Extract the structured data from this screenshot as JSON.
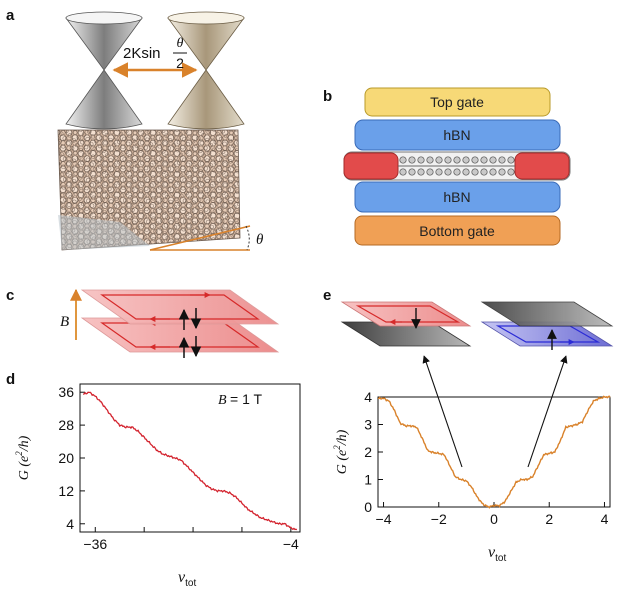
{
  "panel_labels": {
    "a": "a",
    "b": "b",
    "c": "c",
    "d": "d",
    "e": "e"
  },
  "panel_a": {
    "sep_prefix": "2Ksin",
    "frac_num": "θ",
    "frac_den": "2",
    "angle_label": "θ",
    "colors": {
      "cone_left": "#8a8a8a",
      "cone_right": "#b5a588",
      "arrow": "#d9822b",
      "lattice": "#e7cdb8"
    }
  },
  "panel_b": {
    "top_gate": "Top gate",
    "hbn_top": "hBN",
    "hbn_bottom": "hBN",
    "bottom_gate": "Bottom gate",
    "colors": {
      "top_gate": "#f7d977",
      "hbn": "#6aa0ea",
      "contact": "#e24b4b",
      "bottom_gate": "#f0a055"
    }
  },
  "panel_c": {
    "b_label": "B",
    "colors": {
      "layer": "#f3a7a7",
      "edge": "#d62a2a",
      "b_arrow": "#e0973f"
    }
  },
  "panel_d": {
    "field_var": "B",
    "field_value": "= 1 T",
    "ylabel_main": "G (e",
    "ylabel_sup": "2",
    "ylabel_tail": "/h)",
    "xlabel_main": "ν",
    "xlabel_sub": "tot",
    "line_color": "#d3232e"
  },
  "panel_e": {
    "ylabel_main": "G (e",
    "ylabel_sup": "2",
    "ylabel_tail": "/h)",
    "xlabel_main": "ν",
    "xlabel_sub": "tot",
    "line_color": "#d9822b",
    "inset_colors": {
      "red": "#f3a7a7",
      "red_edge": "#d62a2a",
      "blue": "#7b7bd6",
      "blue_edge": "#2b2bd6",
      "dark": "#555555"
    }
  },
  "chart_data": [
    {
      "id": "d",
      "type": "line",
      "title": "",
      "xlabel": "ν_tot",
      "ylabel": "G (e²/h)",
      "annotation": "B = 1 T",
      "xlim": [
        -38.5,
        -2.5
      ],
      "ylim": [
        2,
        38
      ],
      "xticks": [
        -36,
        -28,
        -20,
        -12,
        -4
      ],
      "xtick_labels": [
        "-36",
        "",
        "",
        "",
        "-4"
      ],
      "yticks": [
        4,
        12,
        20,
        28,
        36
      ],
      "grid": false,
      "x": [
        -38,
        -37,
        -36,
        -35,
        -34,
        -33,
        -32,
        -31,
        -30,
        -29,
        -28,
        -27,
        -26,
        -25,
        -24,
        -23,
        -22,
        -21,
        -20,
        -19,
        -18,
        -17,
        -16,
        -15,
        -14,
        -13,
        -12,
        -11,
        -10,
        -9,
        -8,
        -7,
        -6,
        -5,
        -4,
        -3
      ],
      "y": [
        35.5,
        36,
        35,
        33.5,
        31.5,
        29.5,
        28,
        27.5,
        27.5,
        26.5,
        25,
        23.5,
        22,
        21,
        20.5,
        20,
        19.5,
        18,
        16.5,
        15,
        13.5,
        12.5,
        12,
        12,
        11.5,
        10.5,
        9,
        7.5,
        6.5,
        5.5,
        5,
        4.5,
        4,
        4,
        3,
        2.5
      ]
    },
    {
      "id": "e",
      "type": "line",
      "title": "",
      "xlabel": "ν_tot",
      "ylabel": "G (e²/h)",
      "xlim": [
        -4.2,
        4.2
      ],
      "ylim": [
        0,
        4
      ],
      "xticks": [
        -4,
        -2,
        0,
        2,
        4
      ],
      "yticks": [
        0,
        1,
        2,
        3,
        4
      ],
      "grid": false,
      "x": [
        -4.2,
        -4,
        -3.8,
        -3.6,
        -3.4,
        -3.2,
        -3,
        -2.8,
        -2.6,
        -2.4,
        -2.2,
        -2,
        -1.8,
        -1.6,
        -1.4,
        -1.2,
        -1,
        -0.8,
        -0.6,
        -0.4,
        -0.2,
        0,
        0.2,
        0.4,
        0.6,
        0.8,
        1,
        1.2,
        1.4,
        1.6,
        1.8,
        2,
        2.2,
        2.4,
        2.6,
        2.8,
        3,
        3.2,
        3.4,
        3.6,
        3.8,
        4,
        4.2
      ],
      "y": [
        3.95,
        3.95,
        3.85,
        3.5,
        3.05,
        2.95,
        2.95,
        2.9,
        2.5,
        2.05,
        1.98,
        1.95,
        1.9,
        1.5,
        1.1,
        1.0,
        0.95,
        0.7,
        0.35,
        0.1,
        0.0,
        0.05,
        0.05,
        0.2,
        0.55,
        0.9,
        1.0,
        1.0,
        1.1,
        1.5,
        1.9,
        1.95,
        2.0,
        2.4,
        2.9,
        2.95,
        3.0,
        3.1,
        3.5,
        3.85,
        3.95,
        4.0,
        4.0
      ]
    }
  ]
}
